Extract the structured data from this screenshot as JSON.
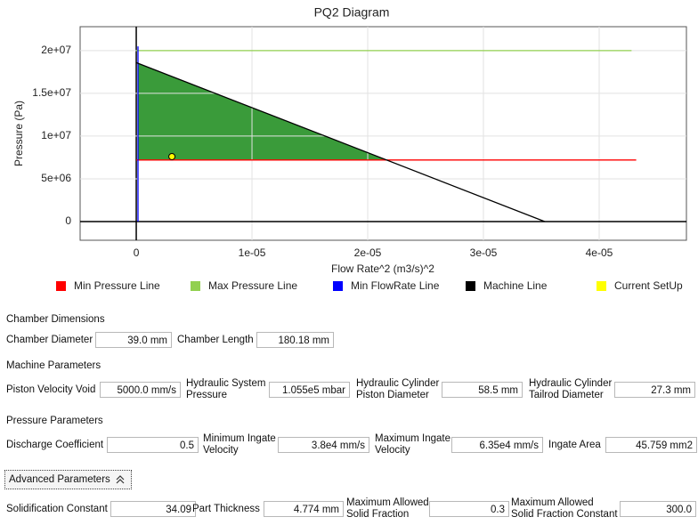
{
  "chart_data": {
    "type": "line",
    "title": "PQ2 Diagram",
    "x_label": "Flow Rate^2 (m3/s)^2",
    "y_label": "Pressure (Pa)",
    "xlim": [
      -4.85e-06,
      4.754e-05
    ],
    "ylim": [
      -2190000,
      22800000
    ],
    "xticks": [
      0,
      {
        "value": 1e-05,
        "label": "1e-05"
      },
      {
        "value": 2e-05,
        "label": "2e-05"
      },
      {
        "value": 3e-05,
        "label": "3e-05"
      },
      {
        "value": 4e-05,
        "label": "4e-05"
      }
    ],
    "yticks": [
      0,
      {
        "value": 5000000,
        "label": "5e+06"
      },
      {
        "value": 10000000,
        "label": "1e+07"
      },
      {
        "value": 15000000,
        "label": "1.5e+07"
      },
      {
        "value": 20000000,
        "label": "2e+07"
      }
    ],
    "grid": true,
    "legend": "bottom",
    "fill_color": "#3a9b3a",
    "series": [
      {
        "name": "Min Pressure Line",
        "color": "#ff0000",
        "x": [
          0,
          4.32e-05
        ],
        "values": [
          7200000,
          7200000
        ]
      },
      {
        "name": "Max Pressure Line",
        "color": "#92d050",
        "x": [
          0,
          4.28e-05
        ],
        "values": [
          20000000,
          20000000
        ]
      },
      {
        "name": "Min FlowRate Line",
        "color": "#0000ff",
        "x": [
          1.5e-07,
          1.5e-07
        ],
        "values": [
          0,
          20500000
        ]
      },
      {
        "name": "Machine Line",
        "color": "#000000",
        "x": [
          0,
          3.53e-05
        ],
        "values": [
          18600000,
          0
        ]
      },
      {
        "name": "Current SetUp",
        "color": "#ffff00",
        "type": "scatter",
        "x": [
          3.08e-06
        ],
        "values": [
          7600000
        ]
      }
    ]
  },
  "form": {
    "sections": [
      {
        "title": "Chamber Dimensions",
        "fields": [
          {
            "label": [
              "Chamber Diameter"
            ],
            "value": "39.0 mm"
          },
          {
            "label": [
              "Chamber Length"
            ],
            "value": "180.18 mm"
          }
        ]
      },
      {
        "title": "Machine Parameters",
        "fields": [
          {
            "label": [
              "Piston Velocity Void"
            ],
            "value": "5000.0 mm/s"
          },
          {
            "label": [
              "Hydraulic System",
              "Pressure"
            ],
            "value": "1.055e5 mbar"
          },
          {
            "label": [
              "Hydraulic Cylinder",
              "Piston Diameter"
            ],
            "value": "58.5 mm"
          },
          {
            "label": [
              "Hydraulic Cylinder",
              "Tailrod Diameter"
            ],
            "value": "27.3 mm"
          }
        ]
      },
      {
        "title": "Pressure Parameters",
        "fields": [
          {
            "label": [
              "Discharge Coefficient"
            ],
            "value": "0.5"
          },
          {
            "label": [
              "Minimum Ingate",
              "Velocity"
            ],
            "value": "3.8e4 mm/s"
          },
          {
            "label": [
              "Maximum Ingate",
              "Velocity"
            ],
            "value": "6.35e4 mm/s"
          },
          {
            "label": [
              "Ingate Area"
            ],
            "value": "45.759 mm2"
          }
        ]
      }
    ],
    "advanced_button": "Advanced Parameters",
    "advanced_fields": [
      {
        "label": [
          "Solidification Constant"
        ],
        "value": "34.09"
      },
      {
        "label": [
          "Part Thickness"
        ],
        "value": "4.774 mm"
      },
      {
        "label": [
          "Maximum Allowed",
          "Solid Fraction"
        ],
        "value": "0.3"
      },
      {
        "label": [
          "Maximum Allowed",
          "Solid Fraction Constant"
        ],
        "value": "300.0"
      }
    ]
  }
}
